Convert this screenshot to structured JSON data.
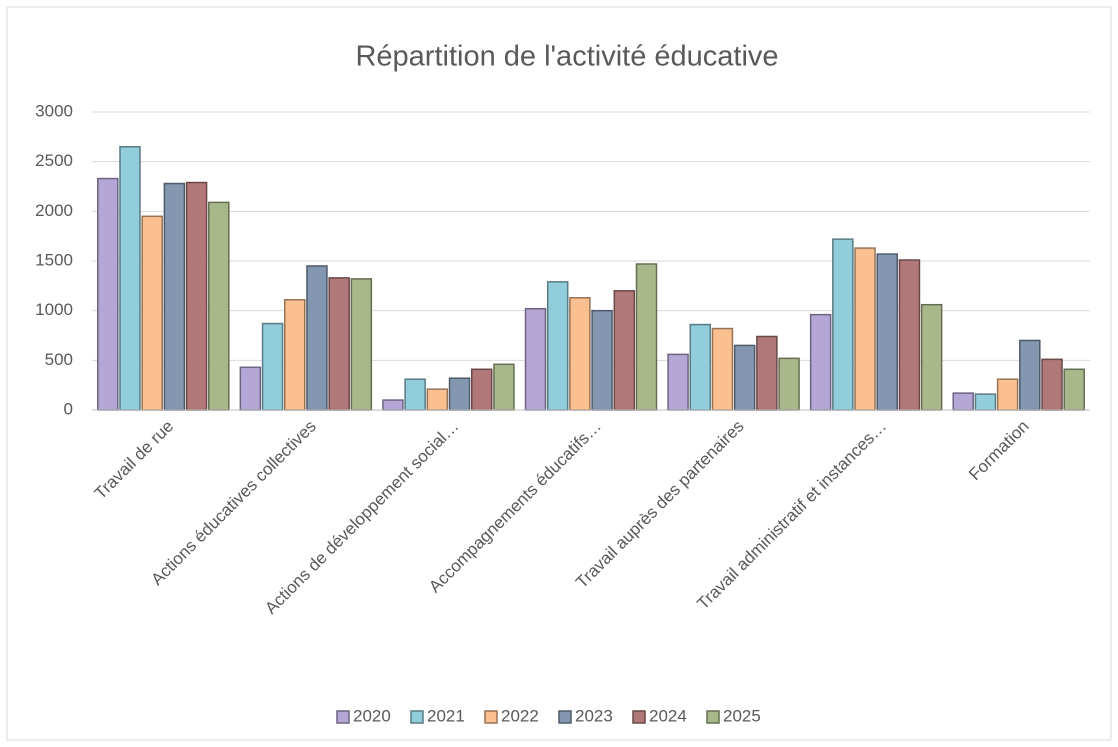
{
  "chart_data": {
    "type": "bar",
    "title": "Répartition de l'activité éducative",
    "categories": [
      "Travail de rue",
      "Actions éducatives collectives",
      "Actions de développement social…",
      "Accompagnements éducatifs…",
      "Travail auprès des partenaires",
      "Travail administratif et instances…",
      "Formation"
    ],
    "series": [
      {
        "name": "2020",
        "color": "#b4a7d6",
        "values": [
          2330,
          430,
          100,
          1020,
          560,
          960,
          170
        ]
      },
      {
        "name": "2021",
        "color": "#92cddc",
        "values": [
          2650,
          870,
          310,
          1290,
          860,
          1720,
          160
        ]
      },
      {
        "name": "2022",
        "color": "#fac090",
        "values": [
          1950,
          1110,
          210,
          1130,
          820,
          1630,
          310
        ]
      },
      {
        "name": "2023",
        "color": "#8497b0",
        "values": [
          2280,
          1450,
          320,
          1000,
          650,
          1570,
          700
        ]
      },
      {
        "name": "2024",
        "color": "#b07878",
        "values": [
          2290,
          1330,
          410,
          1200,
          740,
          1510,
          510
        ]
      },
      {
        "name": "2025",
        "color": "#a9b88a",
        "values": [
          2090,
          1320,
          460,
          1470,
          520,
          1060,
          410
        ]
      }
    ],
    "ylim": [
      0,
      3000
    ],
    "yticks": [
      0,
      500,
      1000,
      1500,
      2000,
      2500,
      3000
    ],
    "grid": true,
    "legend": "bottom"
  }
}
